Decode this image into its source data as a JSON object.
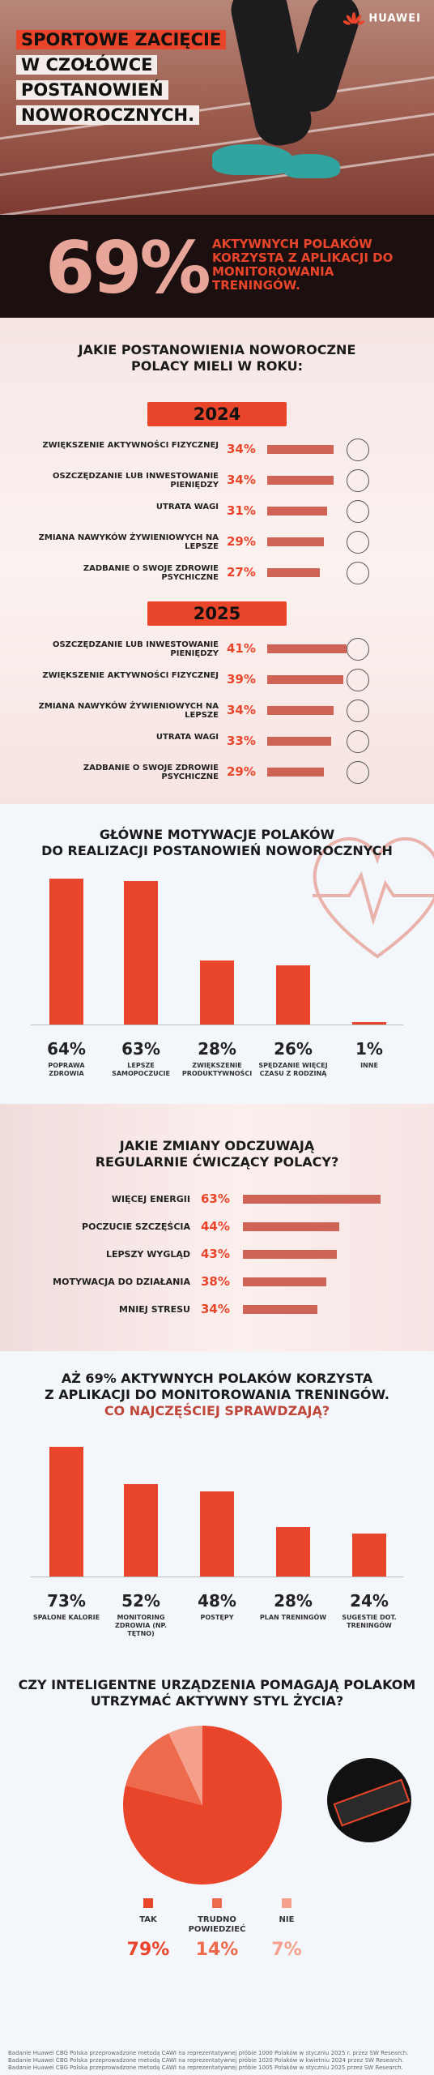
{
  "brand": "HUAWEI",
  "hero": {
    "title_lines": [
      "SPORTOWE ZACIĘCIE",
      "W CZOŁÓWCE",
      "POSTANOWIEŃ",
      "NOWOROCZNYCH."
    ]
  },
  "band": {
    "percent": "69%",
    "text": "AKTYWNYCH POLAKÓW KORZYSTA Z APLIKACJI DO MONITOROWANIA TRENINGÓW."
  },
  "resolutions": {
    "title_line1": "JAKIE POSTANOWIENIA NOWOROCZNE",
    "title_line2": "POLACY MIELI W ROKU:",
    "years": [
      {
        "year": "2024",
        "items": [
          {
            "label": "ZWIĘKSZENIE AKTYWNOŚCI FIZYCZNEJ",
            "value": 34,
            "text": "34%",
            "icon": "running-shoe-icon"
          },
          {
            "label": "OSZCZĘDZANIE LUB INWESTOWANIE PIENIĘDZY",
            "value": 34,
            "text": "34%",
            "icon": "piggy-bank-icon"
          },
          {
            "label": "UTRATA WAGI",
            "value": 31,
            "text": "31%",
            "icon": "scale-icon"
          },
          {
            "label": "ZMIANA NAWYKÓW ŻYWIENIOWYCH NA LEPSZE",
            "value": 29,
            "text": "29%",
            "icon": "plate-icon"
          },
          {
            "label": "ZADBANIE O SWOJE ZDROWIE PSYCHICZNE",
            "value": 27,
            "text": "27%",
            "icon": "mental-health-icon"
          }
        ]
      },
      {
        "year": "2025",
        "items": [
          {
            "label": "OSZCZĘDZANIE LUB INWESTOWANIE PIENIĘDZY",
            "value": 41,
            "text": "41%",
            "icon": "piggy-bank-icon"
          },
          {
            "label": "ZWIĘKSZENIE AKTYWNOŚCI FIZYCZNEJ",
            "value": 39,
            "text": "39%",
            "icon": "running-shoe-icon"
          },
          {
            "label": "ZMIANA NAWYKÓW ŻYWIENIOWYCH NA LEPSZE",
            "value": 34,
            "text": "34%",
            "icon": "plate-icon"
          },
          {
            "label": "UTRATA WAGI",
            "value": 33,
            "text": "33%",
            "icon": "scale-icon"
          },
          {
            "label": "ZADBANIE O SWOJE ZDROWIE PSYCHICZNE",
            "value": 29,
            "text": "29%",
            "icon": "mental-health-icon"
          }
        ]
      }
    ]
  },
  "motivation": {
    "title_line1": "GŁÓWNE MOTYWACJE POLAKÓW",
    "title_line2": "DO REALIZACJI POSTANOWIEŃ NOWOROCZNYCH"
  },
  "changes": {
    "title_line1": "JAKIE ZMIANY ODCZUWAJĄ",
    "title_line2": "REGULARNIE ĆWICZĄCY POLACY?",
    "items": [
      {
        "label": "WIĘCEJ ENERGII",
        "value": 63,
        "text": "63%"
      },
      {
        "label": "POCZUCIE SZCZĘŚCIA",
        "value": 44,
        "text": "44%"
      },
      {
        "label": "LEPSZY WYGLĄD",
        "value": 43,
        "text": "43%"
      },
      {
        "label": "MOTYWACJA DO DZIAŁANIA",
        "value": 38,
        "text": "38%"
      },
      {
        "label": "MNIEJ STRESU",
        "value": 34,
        "text": "34%"
      }
    ]
  },
  "apps": {
    "title_line1": "AŻ 69% AKTYWNYCH POLAKÓW KORZYSTA",
    "title_line2": "Z APLIKACJI DO MONITOROWANIA TRENINGÓW.",
    "subtitle": "CO NAJCZĘŚCIEJ SPRAWDZAJĄ?"
  },
  "pie": {
    "title_line1": "CZY INTELIGENTNE URZĄDZENIA POMAGAJĄ POLAKOM",
    "title_line2": "UTRZYMAĆ AKTYWNY STYL ŻYCIA?"
  },
  "chart_data": [
    {
      "type": "bar",
      "categories": [
        "POPRAWA ZDROWIA",
        "LEPSZE SAMOPOCZUCIE",
        "ZWIĘKSZENIE PRODUKTYWNOŚCI",
        "SPĘDZANIE WIĘCEJ CZASU Z RODZINĄ",
        "INNE"
      ],
      "values": [
        64,
        63,
        28,
        26,
        1
      ],
      "value_labels": [
        "64%",
        "63%",
        "28%",
        "26%",
        "1%"
      ],
      "ylim": [
        0,
        64
      ],
      "color": "#e9452a"
    },
    {
      "type": "bar",
      "categories": [
        "SPALONE KALORIE",
        "MONITORING ZDROWIA (NP. TĘTNO)",
        "POSTĘPY",
        "PLAN TRENINGÓW",
        "SUGESTIE DOT. TRENINGÓW"
      ],
      "values": [
        73,
        52,
        48,
        28,
        24
      ],
      "value_labels": [
        "73%",
        "52%",
        "48%",
        "28%",
        "24%"
      ],
      "ylim": [
        0,
        73
      ],
      "color": "#e9452a"
    },
    {
      "type": "pie",
      "categories": [
        "TAK",
        "TRUDNO POWIEDZIEĆ",
        "NIE"
      ],
      "values": [
        79,
        14,
        7
      ],
      "value_labels": [
        "79%",
        "14%",
        "7%"
      ],
      "colors": [
        "#e9452a",
        "#ee6a4c",
        "#f4a08c"
      ]
    }
  ],
  "footnotes": [
    "Badanie Huawei CBG Polska przeprowadzone metodą CAWI na reprezentatywnej próbie 1000 Polaków w styczniu 2025 r. przez SW Research.",
    "Badanie Huawei CBG Polska przeprowadzone metodą CAWI na reprezentatywnej próbie 1020 Polaków w kwietniu 2024 przez SW Research.",
    "Badanie Huawei CBG Polska przeprowadzone metodą CAWI na reprezentatywnej próbie 1005 Polaków w styczniu 2025 przez SW Research."
  ]
}
